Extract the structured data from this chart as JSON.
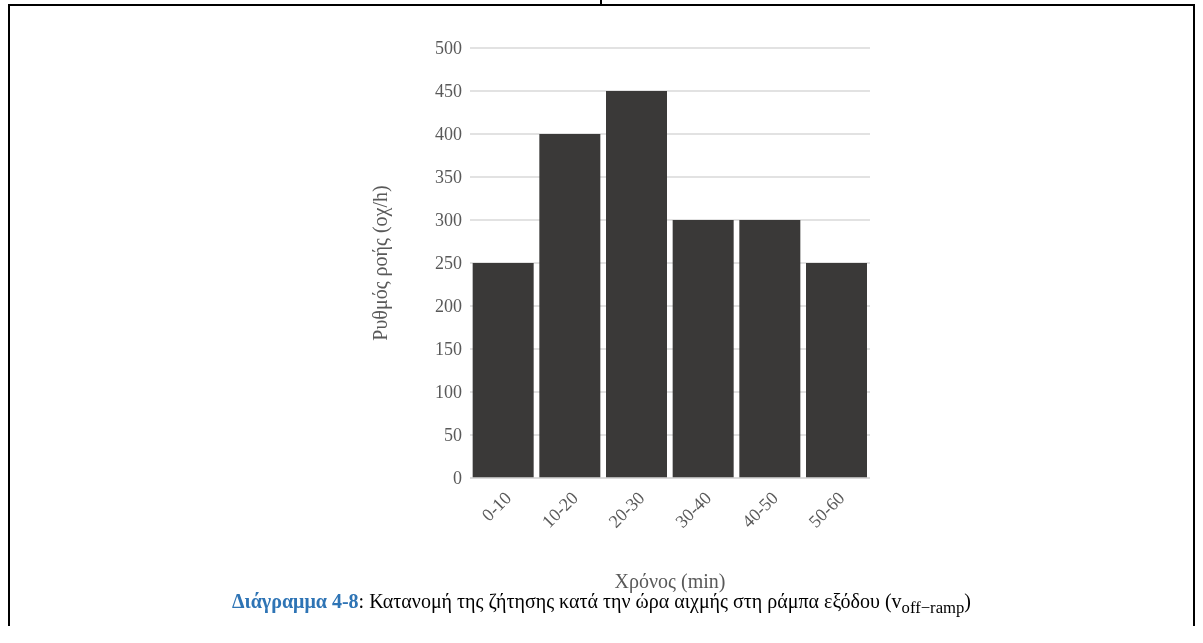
{
  "chart_data": {
    "type": "bar",
    "categories": [
      "0-10",
      "10-20",
      "20-30",
      "30-40",
      "40-50",
      "50-60"
    ],
    "values": [
      250,
      400,
      450,
      300,
      300,
      250
    ],
    "color": "#3a3938",
    "xlabel": "Χρόνος (min)",
    "ylabel": "Ρυθμός ροής (οχ/h)",
    "ylim": [
      0,
      500
    ],
    "yticks": [
      0,
      50,
      100,
      150,
      200,
      250,
      300,
      350,
      400,
      450,
      500
    ],
    "grid": "y",
    "annotations": [
      "Διάγραμμα 4-8: Κατανομή της ζήτησης κατά την ώρα αιχμής στη ράμπα εξόδου (v$_{off−ramp}$)"
    ]
  }
}
